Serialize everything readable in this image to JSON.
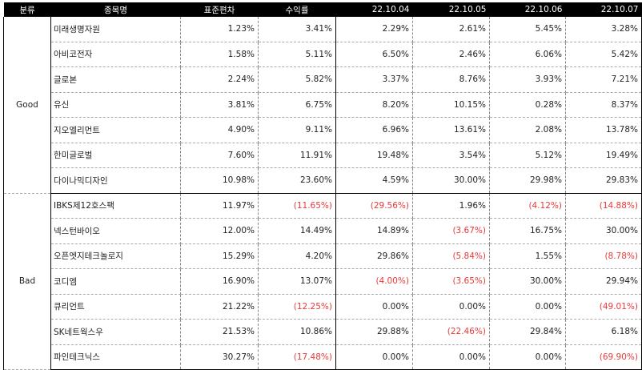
{
  "headers": {
    "group": "분류",
    "name": "종목명",
    "std": "표준편차",
    "ret": "수익률",
    "d1": "22.10.04",
    "d2": "22.10.05",
    "d3": "22.10.06",
    "d4": "22.10.07"
  },
  "colors": {
    "negative": "#e83a3a",
    "header_bg": "#000000"
  },
  "groups": [
    {
      "label": "Good",
      "rows": [
        {
          "name": "미래생명자원",
          "std": "1.23%",
          "ret": "3.41%",
          "d1": "2.29%",
          "d2": "2.61%",
          "d3": "5.45%",
          "d4": "3.28%"
        },
        {
          "name": "아비코전자",
          "std": "1.58%",
          "ret": "5.11%",
          "d1": "6.50%",
          "d2": "2.46%",
          "d3": "6.06%",
          "d4": "5.42%"
        },
        {
          "name": "글로본",
          "std": "2.24%",
          "ret": "5.82%",
          "d1": "3.37%",
          "d2": "8.76%",
          "d3": "3.93%",
          "d4": "7.21%"
        },
        {
          "name": "유신",
          "std": "3.81%",
          "ret": "6.75%",
          "d1": "8.20%",
          "d2": "10.15%",
          "d3": "0.28%",
          "d4": "8.37%"
        },
        {
          "name": "지오엘리먼트",
          "std": "4.90%",
          "ret": "9.11%",
          "d1": "6.96%",
          "d2": "13.61%",
          "d3": "2.08%",
          "d4": "13.78%"
        },
        {
          "name": "한미글로벌",
          "std": "7.60%",
          "ret": "11.91%",
          "d1": "19.48%",
          "d2": "3.54%",
          "d3": "5.12%",
          "d4": "19.49%"
        },
        {
          "name": "다이나믹디자인",
          "std": "10.98%",
          "ret": "23.60%",
          "d1": "4.59%",
          "d2": "30.00%",
          "d3": "29.98%",
          "d4": "29.83%"
        }
      ]
    },
    {
      "label": "Bad",
      "rows": [
        {
          "name": "IBKS제12호스팩",
          "std": "11.97%",
          "ret": "(11.65%)",
          "d1": "(29.56%)",
          "d2": "1.96%",
          "d3": "(4.12%)",
          "d4": "(14.88%)"
        },
        {
          "name": "넥스턴바이오",
          "std": "12.00%",
          "ret": "14.49%",
          "d1": "14.89%",
          "d2": "(3.67%)",
          "d3": "16.75%",
          "d4": "30.00%"
        },
        {
          "name": "오픈엣지테크놀로지",
          "std": "15.29%",
          "ret": "4.20%",
          "d1": "29.86%",
          "d2": "(5.84%)",
          "d3": "1.55%",
          "d4": "(8.78%)"
        },
        {
          "name": "코디엠",
          "std": "16.90%",
          "ret": "13.07%",
          "d1": "(4.00%)",
          "d2": "(3.65%)",
          "d3": "30.00%",
          "d4": "29.94%"
        },
        {
          "name": "큐리언트",
          "std": "21.22%",
          "ret": "(12.25%)",
          "d1": "0.00%",
          "d2": "0.00%",
          "d3": "0.00%",
          "d4": "(49.01%)"
        },
        {
          "name": "SK네트웍스우",
          "std": "21.53%",
          "ret": "10.86%",
          "d1": "29.88%",
          "d2": "(22.46%)",
          "d3": "29.84%",
          "d4": "6.18%"
        },
        {
          "name": "파인테크닉스",
          "std": "30.27%",
          "ret": "(17.48%)",
          "d1": "0.00%",
          "d2": "0.00%",
          "d3": "0.00%",
          "d4": "(69.90%)"
        }
      ]
    }
  ]
}
